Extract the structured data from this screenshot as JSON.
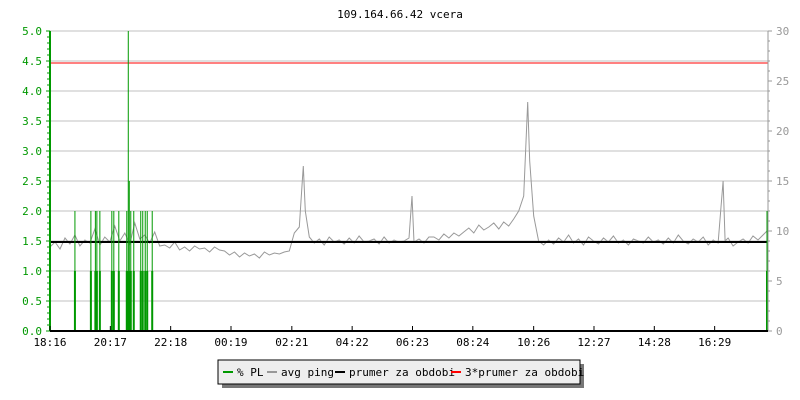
{
  "chart_data": {
    "type": "line",
    "title": "109.164.66.42 vcera",
    "xlabel": "",
    "ylabel_left": "",
    "ylabel_right": "",
    "x_range": [
      "18:16",
      "18:16"
    ],
    "x_tick_labels": [
      "18:16",
      "20:17",
      "22:18",
      "00:19",
      "02:21",
      "04:22",
      "06:23",
      "08:24",
      "10:26",
      "12:27",
      "14:28",
      "16:29"
    ],
    "y_left": {
      "range": [
        0,
        5
      ],
      "tick_labels": [
        "0.0",
        "0.5",
        "1.0",
        "1.5",
        "2.0",
        "2.5",
        "3.0",
        "3.5",
        "4.0",
        "4.5",
        "5.0"
      ],
      "color": "#009900"
    },
    "y_right": {
      "range": [
        0,
        30
      ],
      "tick_labels": [
        "0",
        "5",
        "10",
        "15",
        "20",
        "25",
        "30"
      ],
      "color": "#999999"
    },
    "grid": true,
    "legend_position": "bottom",
    "legend": [
      {
        "label": "% PL",
        "color": "#009900"
      },
      {
        "label": "avg ping",
        "color": "#999999"
      },
      {
        "label": "prumer za obdobi",
        "color": "#000000"
      },
      {
        "label": "3*prumer za obdobi",
        "color": "#ff0000"
      }
    ],
    "series": [
      {
        "name": "% PL",
        "axis": "left",
        "color": "#009900",
        "points": [
          [
            "19:06",
            2.0
          ],
          [
            "19:38",
            2.0
          ],
          [
            "19:47",
            2.0
          ],
          [
            "19:50",
            2.0
          ],
          [
            "19:56",
            2.0
          ],
          [
            "20:20",
            2.0
          ],
          [
            "20:24",
            2.0
          ],
          [
            "20:34",
            2.0
          ],
          [
            "20:50",
            2.0
          ],
          [
            "20:53",
            5.0
          ],
          [
            "20:55",
            2.5
          ],
          [
            "20:58",
            2.0
          ],
          [
            "21:04",
            2.0
          ],
          [
            "21:18",
            2.0
          ],
          [
            "21:22",
            2.0
          ],
          [
            "21:27",
            2.0
          ],
          [
            "21:31",
            2.0
          ],
          [
            "21:41",
            2.0
          ],
          [
            "18:14",
            2.0
          ]
        ]
      },
      {
        "name": "avg ping",
        "axis": "right",
        "color": "#999999",
        "points": [
          [
            "18:16",
            8.4
          ],
          [
            "18:26",
            8.9
          ],
          [
            "18:36",
            8.2
          ],
          [
            "18:46",
            9.3
          ],
          [
            "18:56",
            8.7
          ],
          [
            "19:06",
            9.6
          ],
          [
            "19:16",
            8.5
          ],
          [
            "19:26",
            9.1
          ],
          [
            "19:36",
            8.8
          ],
          [
            "19:46",
            10.2
          ],
          [
            "19:56",
            8.6
          ],
          [
            "20:06",
            9.4
          ],
          [
            "20:16",
            8.9
          ],
          [
            "20:26",
            10.5
          ],
          [
            "20:36",
            9.0
          ],
          [
            "20:46",
            9.8
          ],
          [
            "20:56",
            8.7
          ],
          [
            "21:06",
            10.8
          ],
          [
            "21:16",
            9.2
          ],
          [
            "21:26",
            9.6
          ],
          [
            "21:36",
            8.8
          ],
          [
            "21:46",
            9.9
          ],
          [
            "21:56",
            8.5
          ],
          [
            "22:06",
            8.6
          ],
          [
            "22:16",
            8.3
          ],
          [
            "22:26",
            8.9
          ],
          [
            "22:36",
            8.1
          ],
          [
            "22:46",
            8.4
          ],
          [
            "22:56",
            8.0
          ],
          [
            "23:06",
            8.5
          ],
          [
            "23:16",
            8.2
          ],
          [
            "23:26",
            8.3
          ],
          [
            "23:36",
            7.9
          ],
          [
            "23:46",
            8.4
          ],
          [
            "23:56",
            8.1
          ],
          [
            "00:06",
            8.0
          ],
          [
            "00:16",
            7.6
          ],
          [
            "00:26",
            7.9
          ],
          [
            "00:36",
            7.4
          ],
          [
            "00:46",
            7.8
          ],
          [
            "00:56",
            7.5
          ],
          [
            "01:06",
            7.7
          ],
          [
            "01:16",
            7.3
          ],
          [
            "01:26",
            7.9
          ],
          [
            "01:36",
            7.6
          ],
          [
            "01:46",
            7.8
          ],
          [
            "01:56",
            7.7
          ],
          [
            "02:06",
            7.9
          ],
          [
            "02:16",
            8.0
          ],
          [
            "02:26",
            9.8
          ],
          [
            "02:36",
            10.4
          ],
          [
            "02:42",
            15.0
          ],
          [
            "02:44",
            16.5
          ],
          [
            "02:48",
            12.0
          ],
          [
            "02:56",
            9.4
          ],
          [
            "03:06",
            8.8
          ],
          [
            "03:16",
            9.2
          ],
          [
            "03:26",
            8.6
          ],
          [
            "03:36",
            9.4
          ],
          [
            "03:46",
            8.9
          ],
          [
            "03:56",
            9.1
          ],
          [
            "04:06",
            8.7
          ],
          [
            "04:16",
            9.3
          ],
          [
            "04:26",
            8.8
          ],
          [
            "04:36",
            9.5
          ],
          [
            "04:46",
            8.9
          ],
          [
            "04:56",
            9.0
          ],
          [
            "05:06",
            9.2
          ],
          [
            "05:16",
            8.7
          ],
          [
            "05:26",
            9.4
          ],
          [
            "05:36",
            8.8
          ],
          [
            "05:46",
            9.1
          ],
          [
            "05:56",
            8.9
          ],
          [
            "06:06",
            9.0
          ],
          [
            "06:16",
            9.3
          ],
          [
            "06:22",
            13.5
          ],
          [
            "06:26",
            8.9
          ],
          [
            "06:36",
            9.2
          ],
          [
            "06:46",
            8.8
          ],
          [
            "06:56",
            9.4
          ],
          [
            "07:06",
            9.4
          ],
          [
            "07:16",
            9.1
          ],
          [
            "07:26",
            9.7
          ],
          [
            "07:36",
            9.3
          ],
          [
            "07:46",
            9.8
          ],
          [
            "07:56",
            9.5
          ],
          [
            "08:06",
            9.9
          ],
          [
            "08:16",
            10.3
          ],
          [
            "08:26",
            9.8
          ],
          [
            "08:36",
            10.6
          ],
          [
            "08:46",
            10.1
          ],
          [
            "08:56",
            10.4
          ],
          [
            "09:06",
            10.8
          ],
          [
            "09:16",
            10.2
          ],
          [
            "09:26",
            10.9
          ],
          [
            "09:36",
            10.5
          ],
          [
            "09:46",
            11.2
          ],
          [
            "09:56",
            12.0
          ],
          [
            "10:06",
            13.5
          ],
          [
            "10:14",
            22.9
          ],
          [
            "10:18",
            17.0
          ],
          [
            "10:26",
            11.5
          ],
          [
            "10:36",
            9.0
          ],
          [
            "10:46",
            8.6
          ],
          [
            "10:56",
            9.1
          ],
          [
            "11:06",
            8.7
          ],
          [
            "11:16",
            9.3
          ],
          [
            "11:26",
            8.9
          ],
          [
            "11:36",
            9.6
          ],
          [
            "11:46",
            8.8
          ],
          [
            "11:56",
            9.2
          ],
          [
            "12:06",
            8.6
          ],
          [
            "12:16",
            9.4
          ],
          [
            "12:26",
            9.0
          ],
          [
            "12:36",
            8.7
          ],
          [
            "12:46",
            9.3
          ],
          [
            "12:56",
            8.9
          ],
          [
            "13:06",
            9.5
          ],
          [
            "13:16",
            8.8
          ],
          [
            "13:26",
            9.1
          ],
          [
            "13:36",
            8.6
          ],
          [
            "13:46",
            9.2
          ],
          [
            "13:56",
            9.0
          ],
          [
            "14:06",
            8.8
          ],
          [
            "14:16",
            9.4
          ],
          [
            "14:26",
            8.9
          ],
          [
            "14:36",
            9.1
          ],
          [
            "14:46",
            8.7
          ],
          [
            "14:56",
            9.3
          ],
          [
            "15:06",
            8.8
          ],
          [
            "15:16",
            9.6
          ],
          [
            "15:26",
            9.0
          ],
          [
            "15:36",
            8.7
          ],
          [
            "15:46",
            9.2
          ],
          [
            "15:56",
            8.9
          ],
          [
            "16:06",
            9.4
          ],
          [
            "16:16",
            8.6
          ],
          [
            "16:26",
            9.1
          ],
          [
            "16:36",
            8.8
          ],
          [
            "16:46",
            15.0
          ],
          [
            "16:50",
            9.0
          ],
          [
            "16:56",
            9.3
          ],
          [
            "17:06",
            8.5
          ],
          [
            "17:16",
            8.9
          ],
          [
            "17:26",
            9.2
          ],
          [
            "17:36",
            8.8
          ],
          [
            "17:46",
            9.5
          ],
          [
            "17:56",
            9.1
          ],
          [
            "18:06",
            9.6
          ],
          [
            "18:14",
            10.0
          ]
        ]
      },
      {
        "name": "prumer za obdobi",
        "axis": "right",
        "color": "#000000",
        "value": 8.9
      },
      {
        "name": "3*prumer za obdobi",
        "axis": "right",
        "color": "#ff0000",
        "value": 26.8
      }
    ]
  }
}
